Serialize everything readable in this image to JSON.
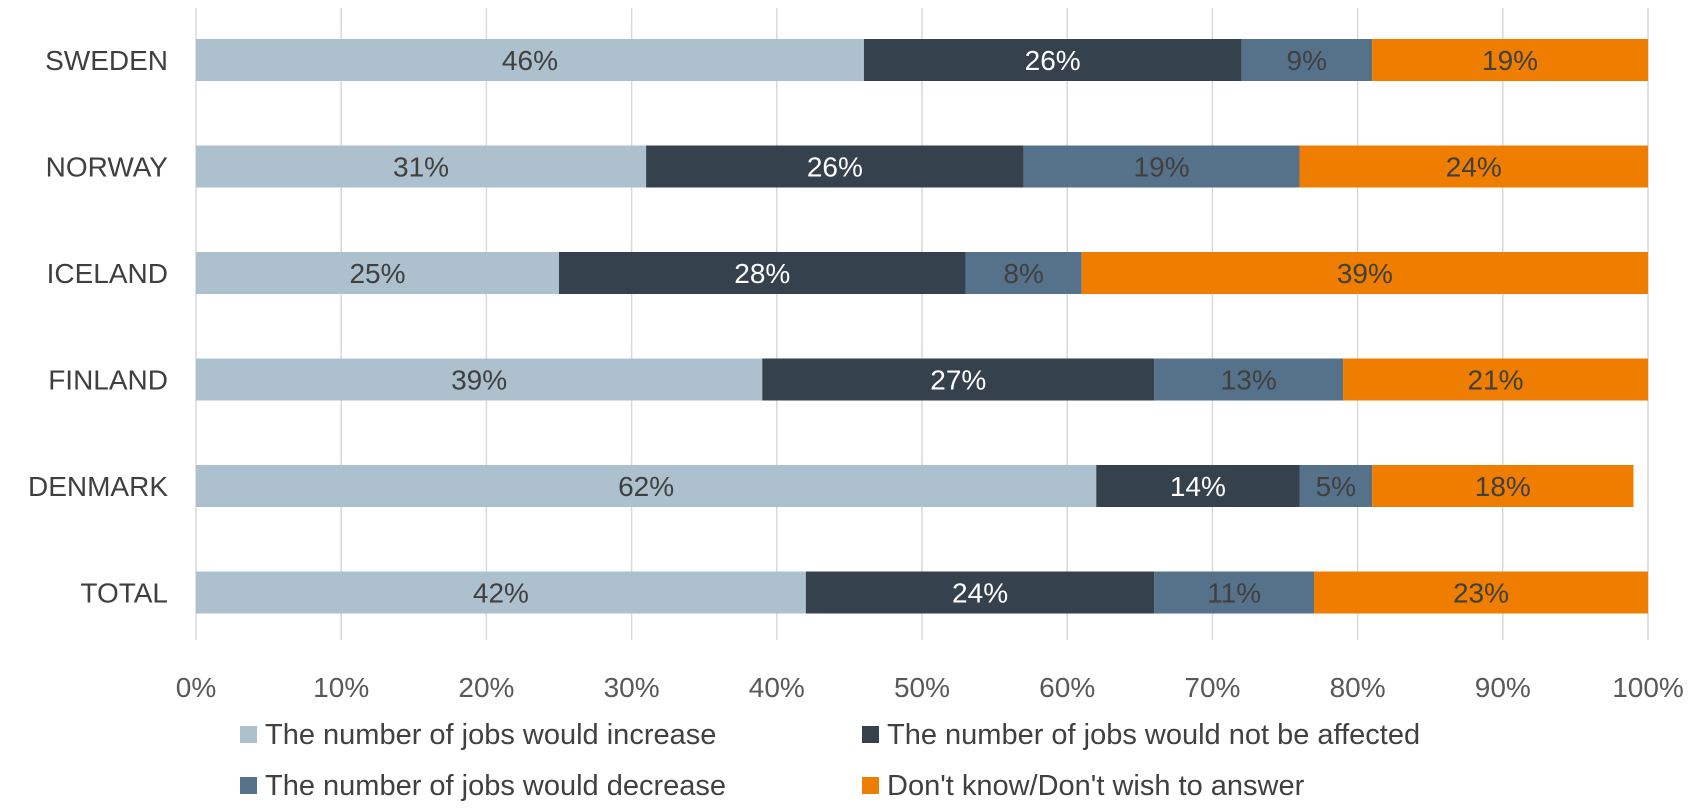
{
  "chart_data": {
    "type": "bar",
    "orientation": "horizontal",
    "stacked": true,
    "categories": [
      "SWEDEN",
      "NORWAY",
      "ICELAND",
      "FINLAND",
      "DENMARK",
      "TOTAL"
    ],
    "series": [
      {
        "name": "The number of jobs would increase",
        "color": "#adc0cd",
        "label_color": "#404040",
        "values": [
          46,
          31,
          25,
          39,
          62,
          42
        ]
      },
      {
        "name": "The number of jobs would not be affected",
        "color": "#35414d",
        "label_color": "#ffffff",
        "values": [
          26,
          26,
          28,
          27,
          14,
          24
        ]
      },
      {
        "name": "The number of jobs would decrease",
        "color": "#56728a",
        "label_color": "#404040",
        "values": [
          9,
          19,
          8,
          13,
          5,
          11
        ]
      },
      {
        "name": "Don't know/Don't wish to answer",
        "color": "#ef7d00",
        "label_color": "#404040",
        "values": [
          19,
          24,
          39,
          21,
          18,
          23
        ]
      }
    ],
    "xlim": [
      0,
      100
    ],
    "x_ticks": [
      "0%",
      "10%",
      "20%",
      "30%",
      "40%",
      "50%",
      "60%",
      "70%",
      "80%",
      "90%",
      "100%"
    ],
    "value_suffix": "%",
    "grid": "vertical",
    "legend_position": "bottom"
  }
}
